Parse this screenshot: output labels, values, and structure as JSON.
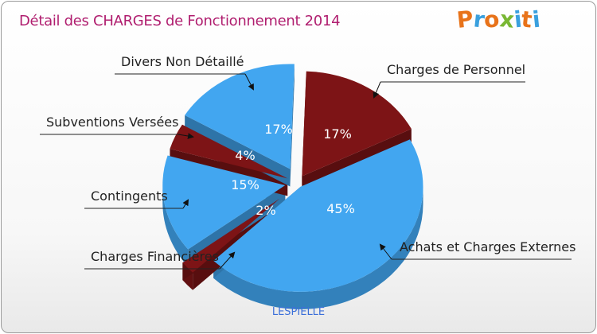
{
  "title": "Détail des CHARGES de Fonctionnement 2014",
  "brand": {
    "letters": [
      "P",
      "r",
      "o",
      "x",
      "i",
      "t",
      "i"
    ],
    "colors": [
      "#e8731a",
      "#3aa0de",
      "#e8731a",
      "#79b733",
      "#3aa0de",
      "#e8731a",
      "#3aa0de"
    ]
  },
  "subtitle": "LESPIELLE",
  "colors": {
    "blue": "#42a6f0",
    "darkred": "#7d1416",
    "title": "#b01e6f",
    "subtitle": "#3b6fd9"
  },
  "chart_data": {
    "type": "pie",
    "title": "Détail des CHARGES de Fonctionnement 2014",
    "slices": [
      {
        "label": "Charges de Personnel",
        "value": 17,
        "percent_label": "17%",
        "color": "#7d1416"
      },
      {
        "label": "Achats et Charges Externes",
        "value": 45,
        "percent_label": "45%",
        "color": "#42a6f0"
      },
      {
        "label": "Charges Financières",
        "value": 2,
        "percent_label": "2%",
        "color": "#7d1416"
      },
      {
        "label": "Contingents",
        "value": 15,
        "percent_label": "15%",
        "color": "#42a6f0"
      },
      {
        "label": "Subventions Versées",
        "value": 4,
        "percent_label": "4%",
        "color": "#7d1416"
      },
      {
        "label": "Divers Non Détaillé",
        "value": 17,
        "percent_label": "17%",
        "color": "#42a6f0"
      }
    ]
  }
}
